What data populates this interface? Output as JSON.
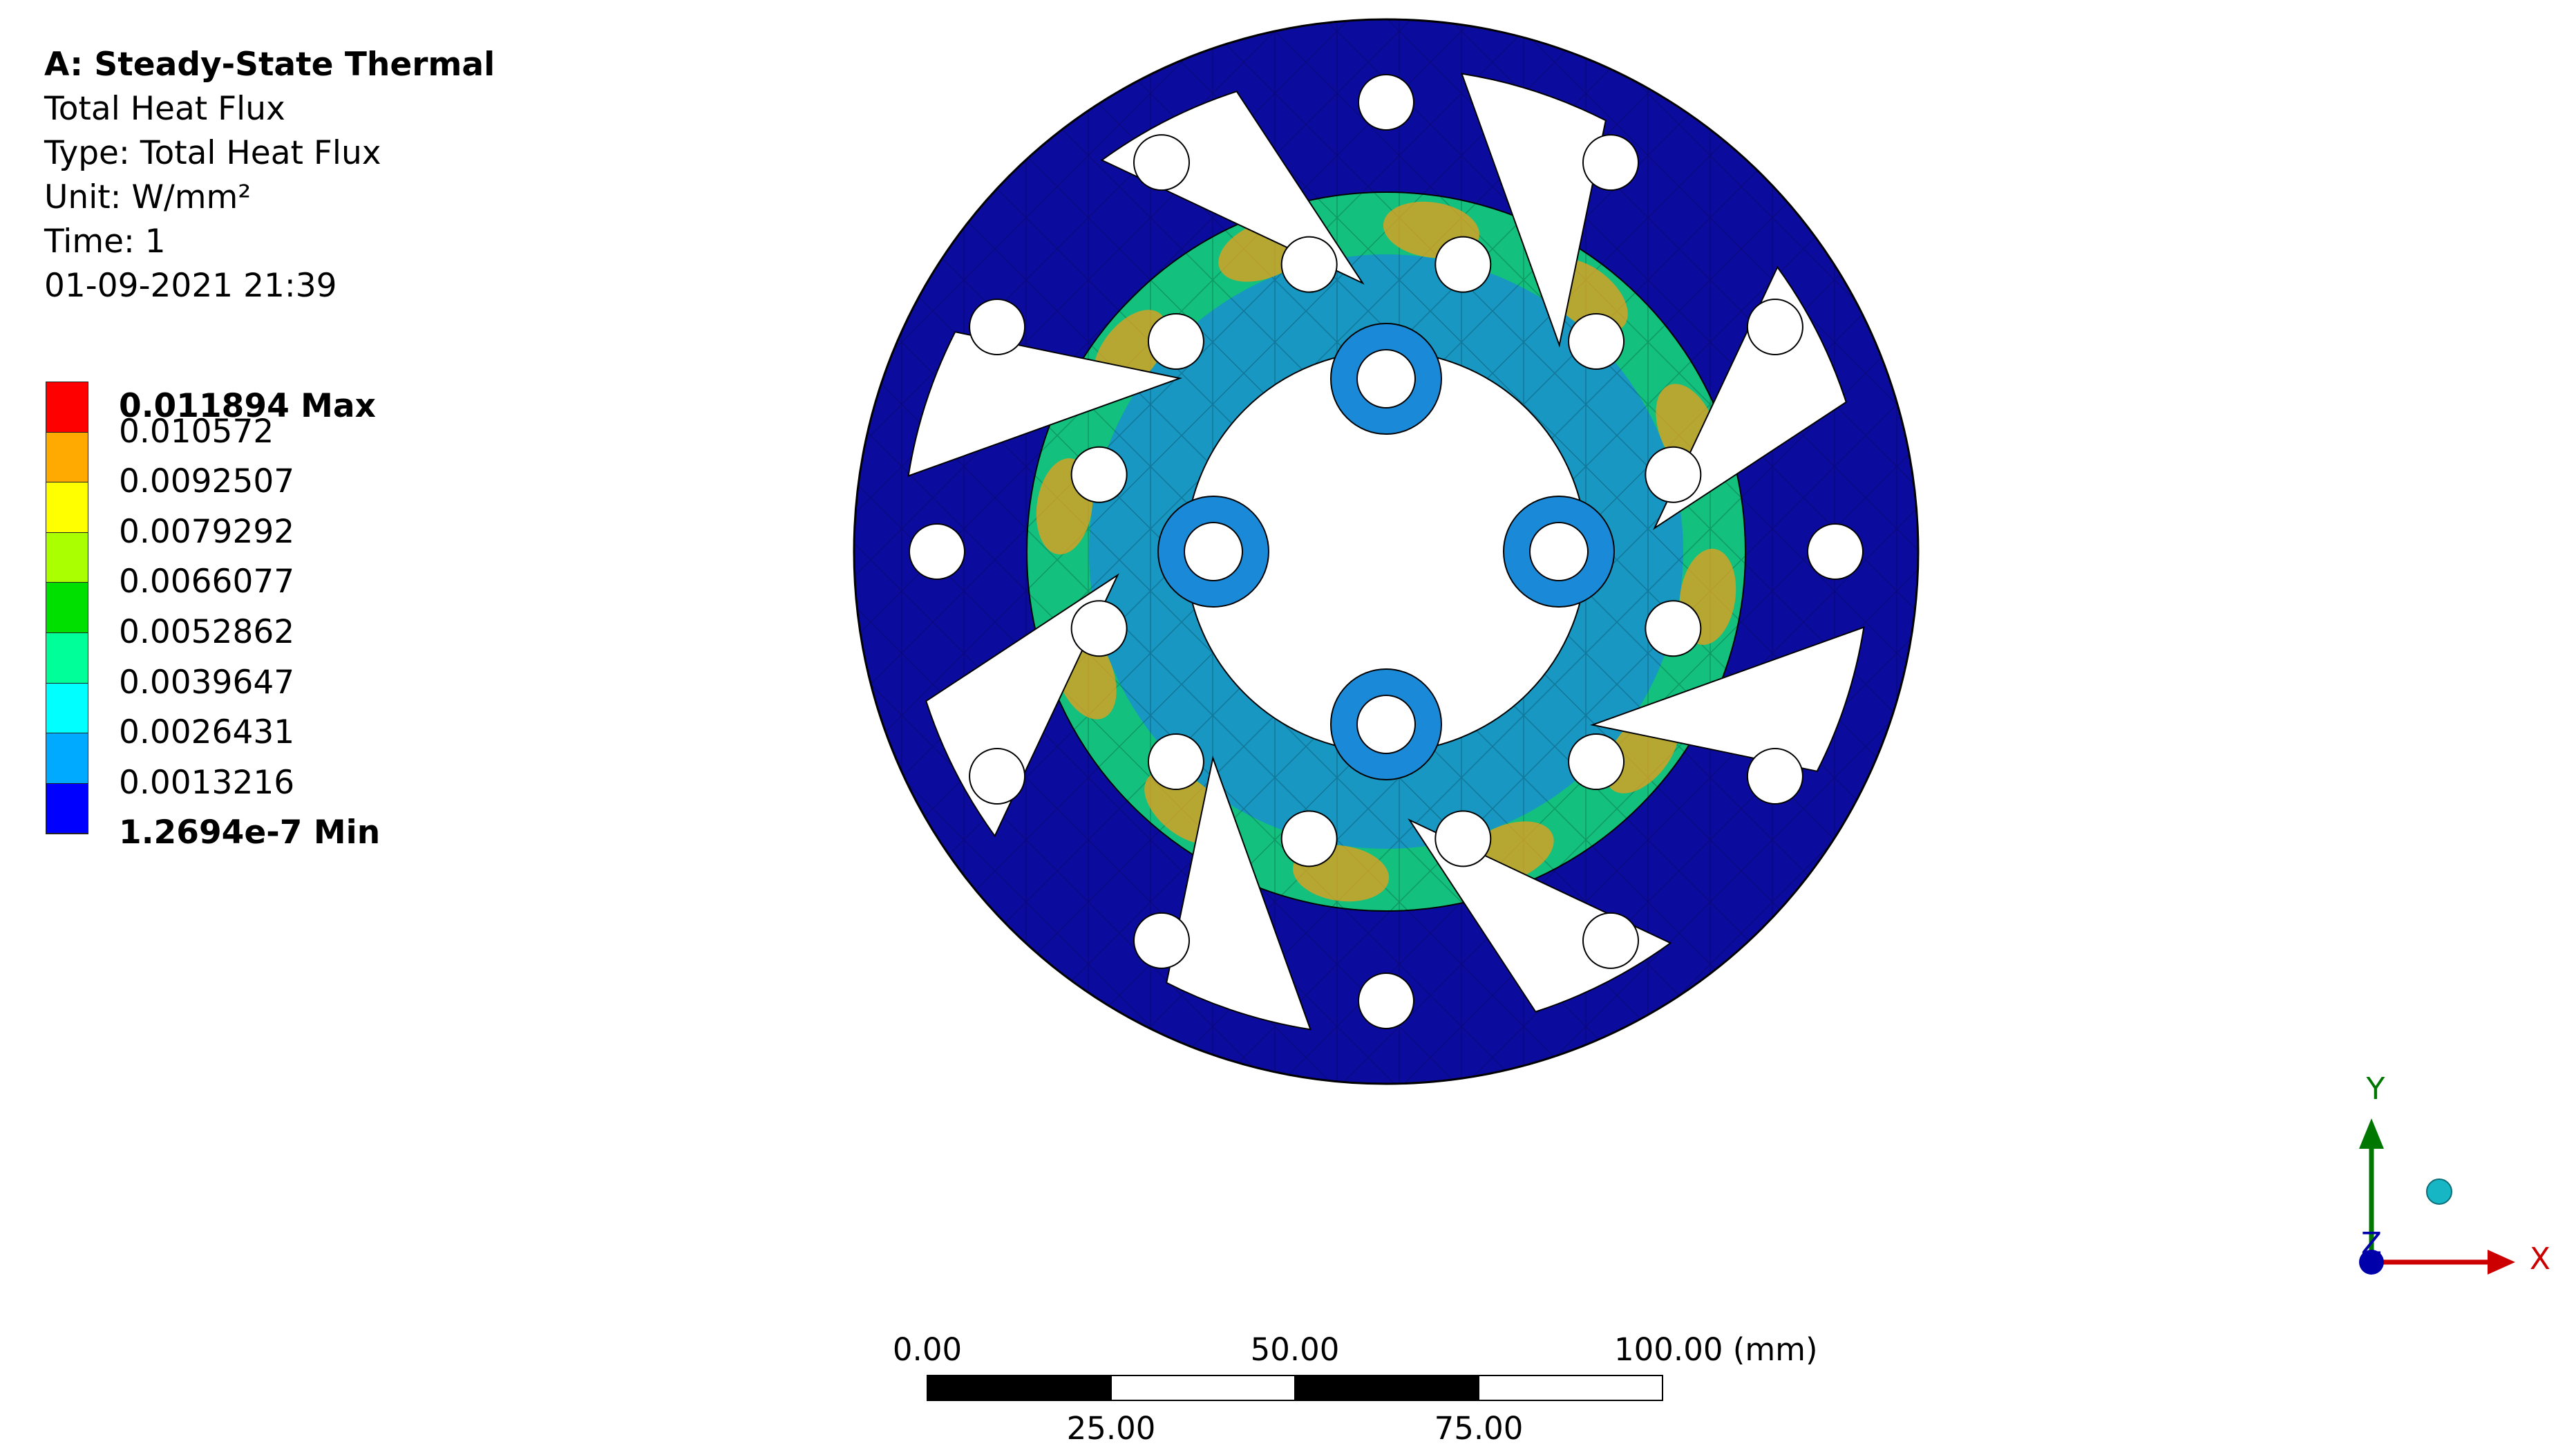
{
  "info": {
    "title": "A: Steady-State Thermal",
    "result_name": "Total Heat Flux",
    "type_line": "Type: Total Heat Flux",
    "unit_line": "Unit: W/mm²",
    "time_line": "Time: 1",
    "timestamp": "01-09-2021 21:39"
  },
  "legend": {
    "entries": [
      {
        "label": "0.011894 Max",
        "color": "#ff0000",
        "bold": true
      },
      {
        "label": "0.010572",
        "color": "#ffaa00"
      },
      {
        "label": "0.0092507",
        "color": "#ffff00"
      },
      {
        "label": "0.0079292",
        "color": "#aaff00"
      },
      {
        "label": "0.0066077",
        "color": "#00e000"
      },
      {
        "label": "0.0052862",
        "color": "#00ff99"
      },
      {
        "label": "0.0039647",
        "color": "#00ffff"
      },
      {
        "label": "0.0026431",
        "color": "#00aaff"
      },
      {
        "label": "0.0013216",
        "color": "#0000ff"
      },
      {
        "label": "1.2694e-7 Min",
        "color": "#0000ff",
        "bold": true
      }
    ]
  },
  "scale_bar": {
    "labels_top": [
      "0.00",
      "50.00",
      "100.00 (mm)"
    ],
    "labels_bottom": [
      "25.00",
      "75.00"
    ]
  },
  "triad": {
    "x_label": "X",
    "y_label": "Y",
    "z_label": "Z",
    "x_color": "#cc0000",
    "y_color": "#007700",
    "z_color": "#0000aa"
  },
  "model": {
    "outer_color": "#0b0c9e",
    "inner_ring_color": "#13c07e",
    "hot_color": "#e0a020",
    "cool_color": "#1a8ad8"
  }
}
